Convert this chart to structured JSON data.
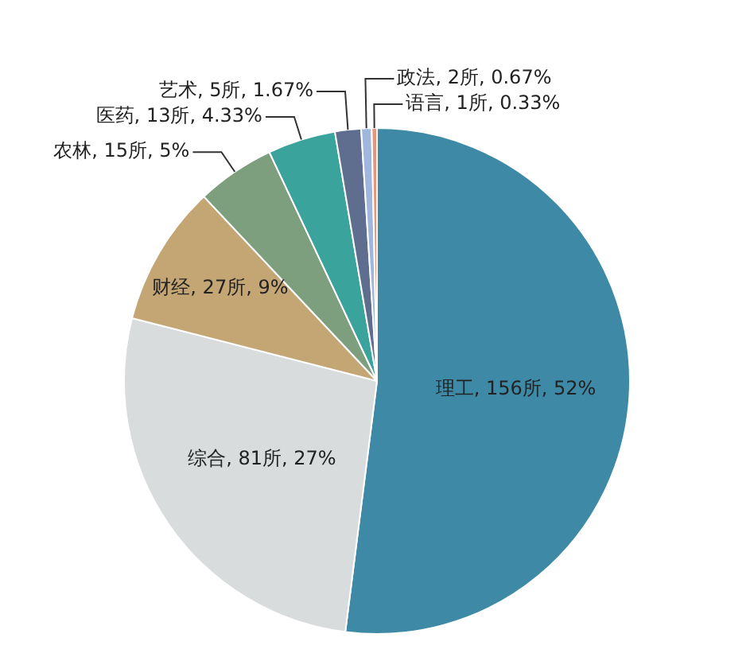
{
  "chart_data": {
    "type": "pie",
    "categories": [
      "理工",
      "综合",
      "财经",
      "农林",
      "医药",
      "艺术",
      "政法",
      "语言"
    ],
    "values": [
      156,
      81,
      27,
      15,
      13,
      5,
      2,
      1
    ],
    "value_labels": [
      "156所, 52%",
      "81所, 27%",
      "27所, 9%",
      "15所, 5%",
      "13所, 4.33%",
      "5所, 1.67%",
      "2所, 0.67%",
      "1所, 0.33%"
    ],
    "colors": [
      "#3e8aa6",
      "#d9dcdd",
      "#c4a675",
      "#7d9f7d",
      "#3aa39c",
      "#5f6e8e",
      "#9fb6dd",
      "#e8957f"
    ]
  }
}
